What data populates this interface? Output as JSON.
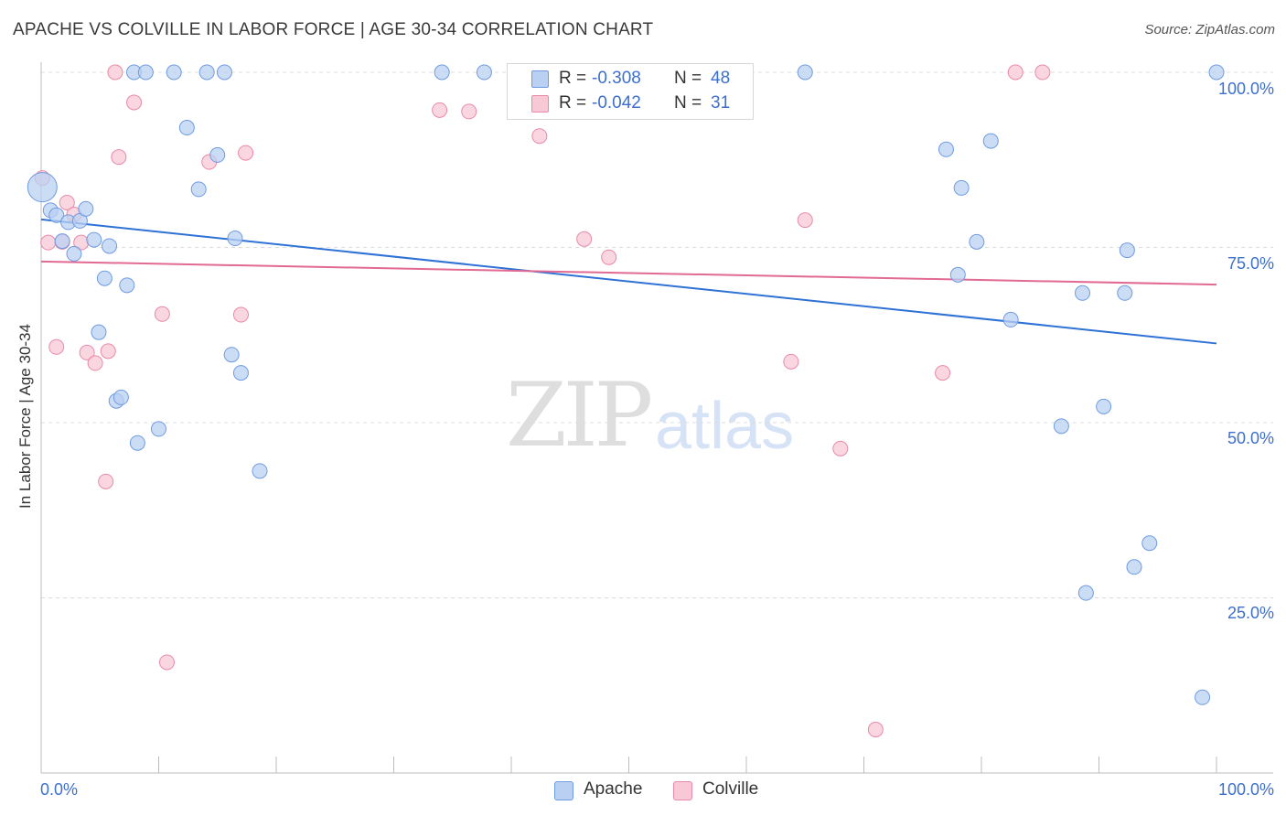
{
  "title": "APACHE VS COLVILLE IN LABOR FORCE | AGE 30-34 CORRELATION CHART",
  "source": "Source: ZipAtlas.com",
  "watermark": {
    "part1": "ZIP",
    "part2": "atlas"
  },
  "colors": {
    "apache_fill": "#b9d0f2",
    "apache_stroke": "#6f9be0",
    "apache_line": "#2f72d6",
    "colville_fill": "#f8c8d6",
    "colville_stroke": "#e88aa8",
    "colville_line": "#e26a92",
    "tick_text": "#3d6fcf",
    "grid": "#dcdcdc"
  },
  "legend": {
    "rows": [
      {
        "series": "Apache",
        "r_label": "R =",
        "r_value": "-0.308",
        "n_label": "N =",
        "n_value": "48"
      },
      {
        "series": "Colville",
        "r_label": "R =",
        "r_value": "-0.042",
        "n_label": "N =",
        "n_value": "31"
      }
    ]
  },
  "bottom_legend": [
    "Apache",
    "Colville"
  ],
  "chart_data": {
    "type": "scatter",
    "title": "APACHE VS COLVILLE IN LABOR FORCE | AGE 30-34 CORRELATION CHART",
    "xlabel": "",
    "ylabel": "In Labor Force | Age 30-34",
    "xlim": [
      0,
      100
    ],
    "ylim": [
      0,
      102
    ],
    "x_tick_labels": [
      "0.0%",
      "100.0%"
    ],
    "y_tick_labels": [
      "100.0%",
      "75.0%",
      "50.0%",
      "25.0%"
    ],
    "y_ticks": [
      100,
      75,
      50,
      25
    ],
    "series": [
      {
        "name": "Apache",
        "r": -0.308,
        "n": 48,
        "trend": {
          "x": [
            0,
            100
          ],
          "y": [
            79.0,
            61.3
          ]
        },
        "points": [
          {
            "x": 0.1,
            "y": 83.6,
            "big": true
          },
          {
            "x": 0.8,
            "y": 80.3
          },
          {
            "x": 1.3,
            "y": 79.6
          },
          {
            "x": 1.8,
            "y": 75.9
          },
          {
            "x": 2.3,
            "y": 78.6
          },
          {
            "x": 2.8,
            "y": 74.1
          },
          {
            "x": 3.3,
            "y": 78.8
          },
          {
            "x": 3.8,
            "y": 80.5
          },
          {
            "x": 4.5,
            "y": 76.1
          },
          {
            "x": 5.4,
            "y": 70.6
          },
          {
            "x": 5.8,
            "y": 75.2
          },
          {
            "x": 4.9,
            "y": 62.9
          },
          {
            "x": 7.3,
            "y": 69.6
          },
          {
            "x": 6.4,
            "y": 53.1
          },
          {
            "x": 6.8,
            "y": 53.6
          },
          {
            "x": 8.2,
            "y": 47.1
          },
          {
            "x": 7.9,
            "y": 100
          },
          {
            "x": 8.9,
            "y": 100
          },
          {
            "x": 10.0,
            "y": 49.1
          },
          {
            "x": 11.3,
            "y": 100
          },
          {
            "x": 12.4,
            "y": 92.1
          },
          {
            "x": 13.4,
            "y": 83.3
          },
          {
            "x": 14.1,
            "y": 100
          },
          {
            "x": 15.0,
            "y": 88.2
          },
          {
            "x": 15.6,
            "y": 100
          },
          {
            "x": 16.2,
            "y": 59.7
          },
          {
            "x": 16.5,
            "y": 76.3
          },
          {
            "x": 17.0,
            "y": 57.1
          },
          {
            "x": 18.6,
            "y": 43.1
          },
          {
            "x": 34.1,
            "y": 100
          },
          {
            "x": 37.7,
            "y": 100
          },
          {
            "x": 65.0,
            "y": 100
          },
          {
            "x": 77.0,
            "y": 89.0
          },
          {
            "x": 78.3,
            "y": 83.5
          },
          {
            "x": 79.6,
            "y": 75.8
          },
          {
            "x": 78.0,
            "y": 71.1
          },
          {
            "x": 80.8,
            "y": 90.2
          },
          {
            "x": 82.5,
            "y": 64.7
          },
          {
            "x": 86.8,
            "y": 49.5
          },
          {
            "x": 88.6,
            "y": 68.5
          },
          {
            "x": 88.9,
            "y": 25.7
          },
          {
            "x": 90.4,
            "y": 52.3
          },
          {
            "x": 92.2,
            "y": 68.5
          },
          {
            "x": 92.4,
            "y": 74.6
          },
          {
            "x": 93.0,
            "y": 29.4
          },
          {
            "x": 94.3,
            "y": 32.8
          },
          {
            "x": 98.8,
            "y": 10.8
          },
          {
            "x": 100.0,
            "y": 100
          }
        ]
      },
      {
        "name": "Colville",
        "r": -0.042,
        "n": 31,
        "trend": {
          "x": [
            0,
            100
          ],
          "y": [
            73.0,
            69.7
          ]
        },
        "points": [
          {
            "x": 0.1,
            "y": 84.9
          },
          {
            "x": 0.6,
            "y": 75.7
          },
          {
            "x": 1.3,
            "y": 60.8
          },
          {
            "x": 1.8,
            "y": 75.8
          },
          {
            "x": 2.2,
            "y": 81.4
          },
          {
            "x": 2.8,
            "y": 79.7
          },
          {
            "x": 3.4,
            "y": 75.7
          },
          {
            "x": 3.9,
            "y": 60.0
          },
          {
            "x": 4.6,
            "y": 58.5
          },
          {
            "x": 5.5,
            "y": 41.6
          },
          {
            "x": 5.7,
            "y": 60.2
          },
          {
            "x": 6.3,
            "y": 100
          },
          {
            "x": 6.6,
            "y": 87.9
          },
          {
            "x": 7.9,
            "y": 95.7
          },
          {
            "x": 10.3,
            "y": 65.5
          },
          {
            "x": 10.7,
            "y": 15.8
          },
          {
            "x": 14.3,
            "y": 87.2
          },
          {
            "x": 17.0,
            "y": 65.4
          },
          {
            "x": 17.4,
            "y": 88.5
          },
          {
            "x": 33.9,
            "y": 94.6
          },
          {
            "x": 36.4,
            "y": 94.4
          },
          {
            "x": 42.4,
            "y": 90.9
          },
          {
            "x": 46.2,
            "y": 76.2
          },
          {
            "x": 48.3,
            "y": 73.6
          },
          {
            "x": 63.8,
            "y": 58.7
          },
          {
            "x": 65.0,
            "y": 78.9
          },
          {
            "x": 68.0,
            "y": 46.3
          },
          {
            "x": 71.0,
            "y": 6.2
          },
          {
            "x": 76.7,
            "y": 57.1
          },
          {
            "x": 82.9,
            "y": 100
          },
          {
            "x": 85.2,
            "y": 100
          }
        ]
      }
    ]
  }
}
